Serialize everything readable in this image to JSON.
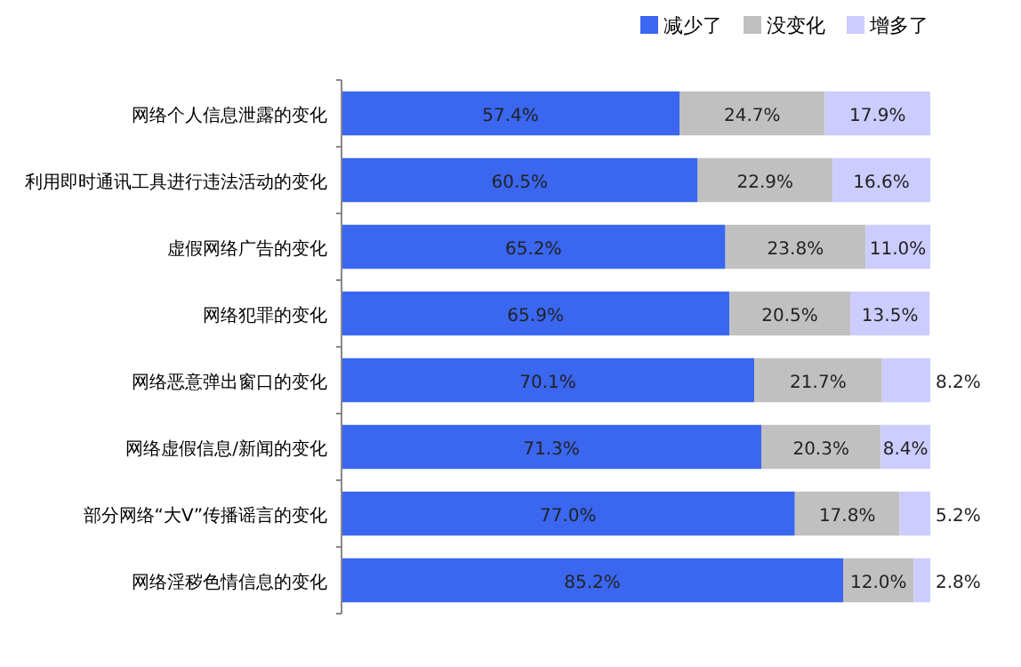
{
  "chart_data": {
    "type": "bar",
    "orientation": "horizontal",
    "stacked": true,
    "legend": "top",
    "categories": [
      "网络个人信息泄露的变化",
      "利用即时通讯工具进行违法活动的变化",
      "虚假网络广告的变化",
      "网络犯罪的变化",
      "网络恶意弹出窗口的变化",
      "网络虚假信息/新闻的变化",
      "部分网络“大V”传播谣言的变化",
      "网络淫秽色情信息的变化"
    ],
    "series": [
      {
        "name": "减少了",
        "color": "#3a66f0",
        "values": [
          57.4,
          60.5,
          65.2,
          65.9,
          70.1,
          71.3,
          77.0,
          85.2
        ],
        "value_labels": [
          "57.4%",
          "60.5%",
          "65.2%",
          "65.9%",
          "70.1%",
          "71.3%",
          "77.0%",
          "85.2%"
        ]
      },
      {
        "name": "没变化",
        "color": "#c0c0c0",
        "values": [
          24.7,
          22.9,
          23.8,
          20.5,
          21.7,
          20.3,
          17.8,
          12.0
        ],
        "value_labels": [
          "24.7%",
          "22.9%",
          "23.8%",
          "20.5%",
          "21.7%",
          "20.3%",
          "17.8%",
          "12.0%"
        ]
      },
      {
        "name": "增多了",
        "color": "#ccccff",
        "values": [
          17.9,
          16.6,
          11.0,
          13.5,
          8.2,
          8.4,
          5.2,
          2.8
        ],
        "value_labels": [
          "17.9%",
          "16.6%",
          "11.0%",
          "13.5%",
          "8.2%",
          "8.4%",
          "5.2%",
          "2.8%"
        ]
      }
    ]
  }
}
